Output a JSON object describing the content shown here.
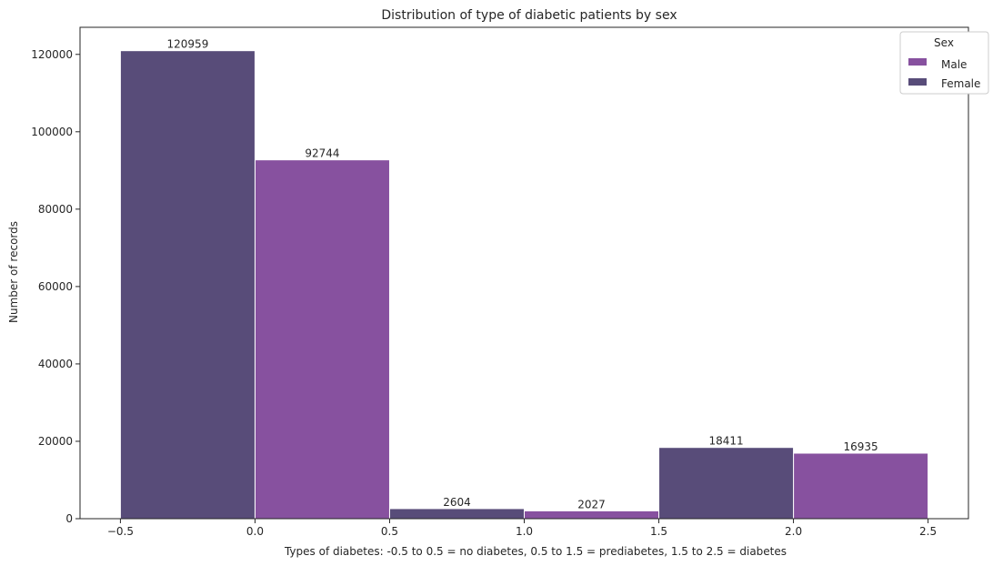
{
  "chart_data": {
    "type": "bar",
    "title": "Distribution of type of diabetic patients by sex",
    "xlabel": "Types of diabetes: -0.5 to 0.5 = no diabetes, 0.5 to 1.5 = prediabetes, 1.5 to 2.5 = diabetes",
    "ylabel": "Number of records",
    "xlim": [
      -0.65,
      2.65
    ],
    "ylim": [
      0,
      127000
    ],
    "xticks": [
      -0.5,
      0.0,
      0.5,
      1.0,
      1.5,
      2.0,
      2.5
    ],
    "xtick_labels": [
      "−0.5",
      "0.0",
      "0.5",
      "1.0",
      "1.5",
      "2.0",
      "2.5"
    ],
    "yticks": [
      0,
      20000,
      40000,
      60000,
      80000,
      100000,
      120000
    ],
    "ytick_labels": [
      "0",
      "20000",
      "40000",
      "60000",
      "80000",
      "100000",
      "120000"
    ],
    "grid": false,
    "legend": {
      "title": "Sex",
      "placement": "top-right"
    },
    "series": [
      {
        "name": "Male",
        "color": "#87519f",
        "bars": [
          {
            "x0": 0.0,
            "x1": 0.5,
            "value": 92744,
            "label": "92744"
          },
          {
            "x0": 1.0,
            "x1": 1.5,
            "value": 2027,
            "label": "2027"
          },
          {
            "x0": 2.0,
            "x1": 2.5,
            "value": 16935,
            "label": "16935"
          }
        ]
      },
      {
        "name": "Female",
        "color": "#584c79",
        "bars": [
          {
            "x0": -0.5,
            "x1": 0.0,
            "value": 120959,
            "label": "120959"
          },
          {
            "x0": 0.5,
            "x1": 1.0,
            "value": 2604,
            "label": "2604"
          },
          {
            "x0": 1.5,
            "x1": 2.0,
            "value": 18411,
            "label": "18411"
          }
        ]
      }
    ]
  }
}
